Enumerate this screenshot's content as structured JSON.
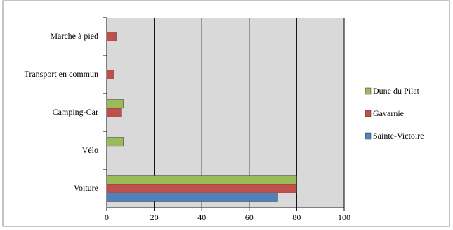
{
  "chart_data": {
    "type": "barh",
    "categories": [
      "Voiture",
      "Vélo",
      "Camping-Car",
      "Transport en commun",
      "Marche à pied"
    ],
    "series": [
      {
        "name": "Sainte-Victoire",
        "color": "#4f81bd",
        "values": [
          72,
          0,
          0,
          0,
          0
        ]
      },
      {
        "name": "Gavarnie",
        "color": "#c0504d",
        "values": [
          80,
          0,
          6,
          3,
          4
        ]
      },
      {
        "name": "Dune du Pilat",
        "color": "#9bbb59",
        "values": [
          80,
          7,
          7,
          0,
          0
        ]
      }
    ],
    "xlim": [
      0,
      100
    ],
    "xticks": [
      0,
      20,
      40,
      60,
      80,
      100
    ],
    "grid": true,
    "legend": "right"
  }
}
